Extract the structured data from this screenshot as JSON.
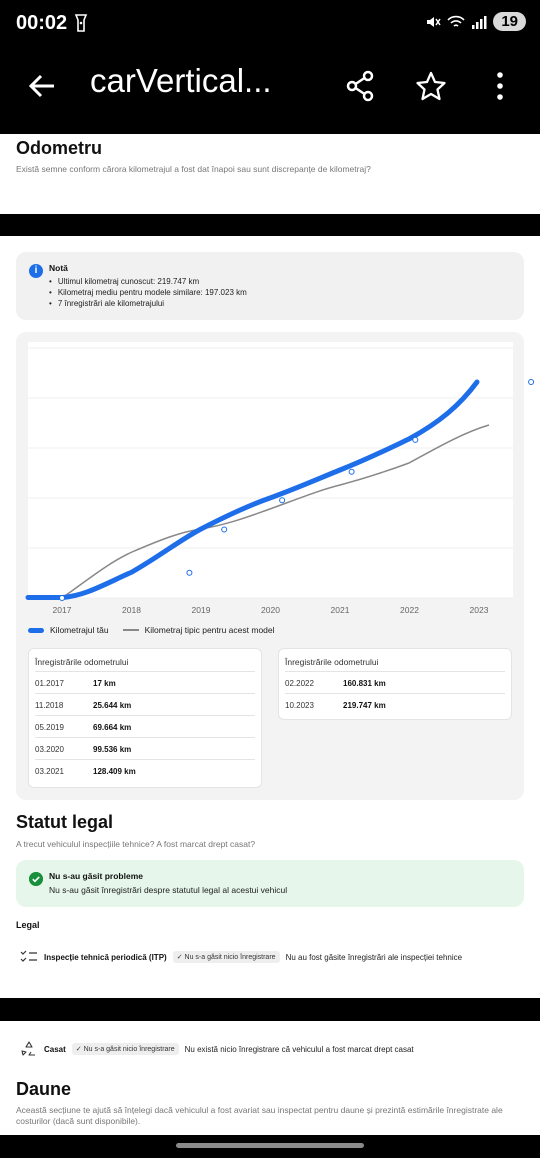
{
  "status_bar": {
    "time": "00:02",
    "battery": "19"
  },
  "app_bar": {
    "title": "carVertical..."
  },
  "odometer": {
    "title": "Odometru",
    "subtitle": "Există semne conform cărora kilometrajul a fost dat înapoi sau sunt discrepanțe de kilometraj?"
  },
  "note": {
    "title": "Notă",
    "items": [
      "Ultimul kilometraj cunoscut: 219.747 km",
      "Kilometraj mediu pentru modele similare: 197.023 km",
      "7 înregistrări ale kilometrajului"
    ]
  },
  "chart_data": {
    "type": "line",
    "x_ticks": [
      "2017",
      "2018",
      "2019",
      "2020",
      "2021",
      "2022",
      "2023"
    ],
    "series": [
      {
        "name": "Kilometrajul tău",
        "color": "#1d6ee8",
        "points": [
          [
            "01.2017",
            17
          ],
          [
            "11.2018",
            25644
          ],
          [
            "05.2019",
            69664
          ],
          [
            "03.2020",
            99536
          ],
          [
            "03.2021",
            128409
          ],
          [
            "02.2022",
            160831
          ],
          [
            "10.2023",
            219747
          ]
        ]
      },
      {
        "name": "Kilometraj tipic pentru acest model",
        "color": "#888888"
      }
    ]
  },
  "legend": {
    "yours": "Kilometrajul tău",
    "typical": "Kilometraj tipic pentru acest model"
  },
  "records": {
    "header": "Înregistrările odometrului",
    "left": [
      {
        "date": "01.2017",
        "value": "17 km"
      },
      {
        "date": "11.2018",
        "value": "25.644 km"
      },
      {
        "date": "05.2019",
        "value": "69.664 km"
      },
      {
        "date": "03.2020",
        "value": "99.536 km"
      },
      {
        "date": "03.2021",
        "value": "128.409 km"
      }
    ],
    "right": [
      {
        "date": "02.2022",
        "value": "160.831 km"
      },
      {
        "date": "10.2023",
        "value": "219.747 km"
      }
    ]
  },
  "legal": {
    "title": "Statut legal",
    "subtitle": "A trecut vehiculul inspecțiile tehnice? A fost marcat drept casat?",
    "ok_title": "Nu s-au găsit probleme",
    "ok_text": "Nu s-au găsit înregistrări despre statutul legal al acestui vehicul",
    "section_label": "Legal",
    "itp_label": "Inspecție tehnică periodică (ITP)",
    "itp_pill": "✓ Nu s-a găsit nicio înregistrare",
    "itp_text": "Nu au fost găsite înregistrări ale inspecției tehnice",
    "casat_label": "Casat",
    "casat_pill": "✓ Nu s-a găsit nicio înregistrare",
    "casat_text": "Nu există nicio înregistrare că vehiculul a fost marcat drept casat"
  },
  "damage": {
    "title": "Daune",
    "subtitle": "Această secțiune te ajută să înțelegi dacă vehiculul a fost avariat sau inspectat pentru daune și prezintă estimările înregistrate ale costurilor (dacă sunt disponibile)."
  }
}
